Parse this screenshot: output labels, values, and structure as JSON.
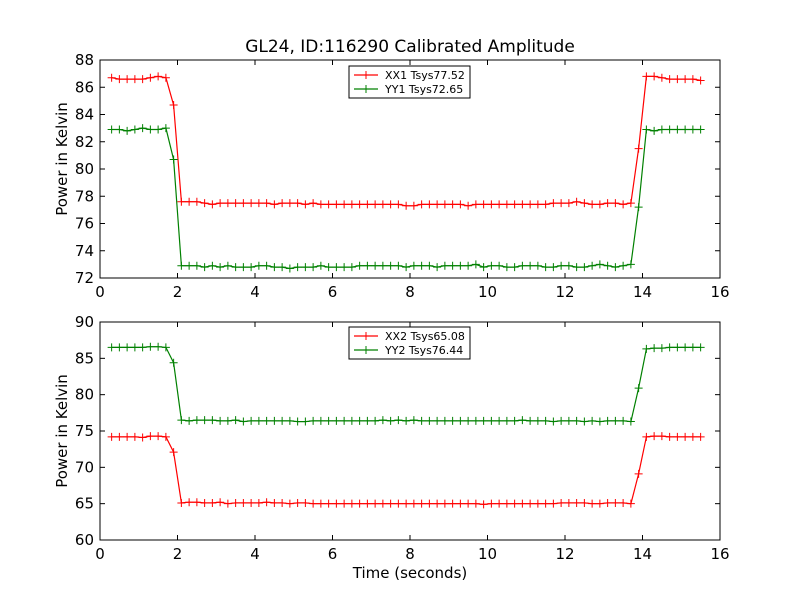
{
  "figure": {
    "title": "GL24, ID:116290 Calibrated Amplitude",
    "xlabel": "Time (seconds)"
  },
  "colors": {
    "red": "#ff0000",
    "green": "#008000"
  },
  "chart_data": [
    {
      "type": "line",
      "title": "GL24, ID:116290 Calibrated Amplitude",
      "xlabel": "",
      "ylabel": "Power in Kelvin",
      "xlim": [
        0,
        16
      ],
      "ylim": [
        72,
        88
      ],
      "xticks": [
        "0",
        "2",
        "4",
        "6",
        "8",
        "10",
        "12",
        "14",
        "16"
      ],
      "yticks": [
        "72",
        "74",
        "76",
        "78",
        "80",
        "82",
        "84",
        "86",
        "88"
      ],
      "grid": false,
      "legend_position": "top-center",
      "x": [
        0.3,
        0.5,
        0.7,
        0.9,
        1.1,
        1.3,
        1.5,
        1.7,
        1.9,
        2.1,
        2.3,
        2.5,
        2.7,
        2.9,
        3.1,
        3.3,
        3.5,
        3.7,
        3.9,
        4.1,
        4.3,
        4.5,
        4.7,
        4.9,
        5.1,
        5.3,
        5.5,
        5.7,
        5.9,
        6.1,
        6.3,
        6.5,
        6.7,
        6.9,
        7.1,
        7.3,
        7.5,
        7.7,
        7.9,
        8.1,
        8.3,
        8.5,
        8.7,
        8.9,
        9.1,
        9.3,
        9.5,
        9.7,
        9.9,
        10.1,
        10.3,
        10.5,
        10.7,
        10.9,
        11.1,
        11.3,
        11.5,
        11.7,
        11.9,
        12.1,
        12.3,
        12.5,
        12.7,
        12.9,
        13.1,
        13.3,
        13.5,
        13.7,
        13.9,
        14.1,
        14.3,
        14.5,
        14.7,
        14.9,
        15.1,
        15.3,
        15.5
      ],
      "series": [
        {
          "name": "XX1 Tsys77.52",
          "color": "#ff0000",
          "values": [
            86.7,
            86.6,
            86.6,
            86.6,
            86.6,
            86.7,
            86.8,
            86.7,
            84.7,
            77.6,
            77.6,
            77.6,
            77.5,
            77.4,
            77.5,
            77.5,
            77.5,
            77.5,
            77.5,
            77.5,
            77.5,
            77.4,
            77.5,
            77.5,
            77.5,
            77.4,
            77.5,
            77.4,
            77.4,
            77.4,
            77.4,
            77.4,
            77.4,
            77.4,
            77.4,
            77.4,
            77.4,
            77.4,
            77.3,
            77.3,
            77.4,
            77.4,
            77.4,
            77.4,
            77.4,
            77.4,
            77.3,
            77.4,
            77.4,
            77.4,
            77.4,
            77.4,
            77.4,
            77.4,
            77.4,
            77.4,
            77.4,
            77.5,
            77.5,
            77.5,
            77.6,
            77.5,
            77.4,
            77.4,
            77.5,
            77.5,
            77.4,
            77.5,
            81.5,
            86.8,
            86.8,
            86.7,
            86.6,
            86.6,
            86.6,
            86.6,
            86.5
          ]
        },
        {
          "name": "YY1 Tsys72.65",
          "color": "#008000",
          "values": [
            82.9,
            82.9,
            82.8,
            82.9,
            83.0,
            82.9,
            82.9,
            83.0,
            80.7,
            72.9,
            72.9,
            72.9,
            72.8,
            72.9,
            72.8,
            72.9,
            72.8,
            72.8,
            72.8,
            72.9,
            72.9,
            72.8,
            72.8,
            72.7,
            72.8,
            72.8,
            72.8,
            72.9,
            72.8,
            72.8,
            72.8,
            72.8,
            72.9,
            72.9,
            72.9,
            72.9,
            72.9,
            72.9,
            72.8,
            72.9,
            72.9,
            72.9,
            72.8,
            72.9,
            72.9,
            72.9,
            72.9,
            73.0,
            72.8,
            72.9,
            72.9,
            72.8,
            72.8,
            72.9,
            72.9,
            72.9,
            72.8,
            72.8,
            72.9,
            72.9,
            72.8,
            72.8,
            72.9,
            73.0,
            72.9,
            72.8,
            72.9,
            73.0,
            77.2,
            82.9,
            82.8,
            82.9,
            82.9,
            82.9,
            82.9,
            82.9,
            82.9
          ]
        }
      ]
    },
    {
      "type": "line",
      "title": "",
      "xlabel": "Time (seconds)",
      "ylabel": "Power in Kelvin",
      "xlim": [
        0,
        16
      ],
      "ylim": [
        60,
        90
      ],
      "xticks": [
        "0",
        "2",
        "4",
        "6",
        "8",
        "10",
        "12",
        "14",
        "16"
      ],
      "yticks": [
        "60",
        "65",
        "70",
        "75",
        "80",
        "85",
        "90"
      ],
      "grid": false,
      "legend_position": "top-center",
      "x": [
        0.3,
        0.5,
        0.7,
        0.9,
        1.1,
        1.3,
        1.5,
        1.7,
        1.9,
        2.1,
        2.3,
        2.5,
        2.7,
        2.9,
        3.1,
        3.3,
        3.5,
        3.7,
        3.9,
        4.1,
        4.3,
        4.5,
        4.7,
        4.9,
        5.1,
        5.3,
        5.5,
        5.7,
        5.9,
        6.1,
        6.3,
        6.5,
        6.7,
        6.9,
        7.1,
        7.3,
        7.5,
        7.7,
        7.9,
        8.1,
        8.3,
        8.5,
        8.7,
        8.9,
        9.1,
        9.3,
        9.5,
        9.7,
        9.9,
        10.1,
        10.3,
        10.5,
        10.7,
        10.9,
        11.1,
        11.3,
        11.5,
        11.7,
        11.9,
        12.1,
        12.3,
        12.5,
        12.7,
        12.9,
        13.1,
        13.3,
        13.5,
        13.7,
        13.9,
        14.1,
        14.3,
        14.5,
        14.7,
        14.9,
        15.1,
        15.3,
        15.5
      ],
      "series": [
        {
          "name": "XX2 Tsys65.08",
          "color": "#ff0000",
          "values": [
            74.2,
            74.2,
            74.2,
            74.2,
            74.1,
            74.3,
            74.3,
            74.2,
            72.1,
            65.1,
            65.2,
            65.2,
            65.1,
            65.1,
            65.2,
            65.0,
            65.1,
            65.1,
            65.1,
            65.1,
            65.2,
            65.1,
            65.1,
            65.0,
            65.1,
            65.1,
            65.0,
            65.0,
            65.0,
            65.0,
            65.0,
            65.0,
            65.0,
            65.0,
            65.0,
            65.0,
            65.0,
            65.0,
            65.0,
            65.0,
            65.0,
            65.0,
            65.0,
            65.0,
            65.0,
            65.0,
            65.0,
            65.0,
            64.9,
            65.0,
            65.0,
            65.0,
            65.0,
            65.0,
            65.0,
            65.0,
            65.0,
            65.0,
            65.1,
            65.1,
            65.1,
            65.1,
            65.0,
            65.0,
            65.1,
            65.1,
            65.1,
            65.0,
            69.1,
            74.2,
            74.3,
            74.3,
            74.2,
            74.2,
            74.2,
            74.2,
            74.2
          ]
        },
        {
          "name": "YY2 Tsys76.44",
          "color": "#008000",
          "values": [
            86.5,
            86.5,
            86.5,
            86.5,
            86.5,
            86.6,
            86.6,
            86.5,
            84.4,
            76.5,
            76.4,
            76.5,
            76.5,
            76.5,
            76.4,
            76.4,
            76.5,
            76.3,
            76.4,
            76.4,
            76.4,
            76.4,
            76.4,
            76.4,
            76.3,
            76.3,
            76.4,
            76.4,
            76.4,
            76.4,
            76.4,
            76.4,
            76.4,
            76.4,
            76.4,
            76.5,
            76.4,
            76.5,
            76.4,
            76.5,
            76.4,
            76.4,
            76.4,
            76.4,
            76.4,
            76.4,
            76.4,
            76.4,
            76.4,
            76.4,
            76.4,
            76.4,
            76.4,
            76.5,
            76.4,
            76.4,
            76.4,
            76.3,
            76.4,
            76.4,
            76.4,
            76.3,
            76.4,
            76.3,
            76.4,
            76.4,
            76.4,
            76.3,
            80.9,
            86.3,
            86.4,
            86.4,
            86.5,
            86.5,
            86.5,
            86.5,
            86.5
          ]
        }
      ]
    }
  ]
}
